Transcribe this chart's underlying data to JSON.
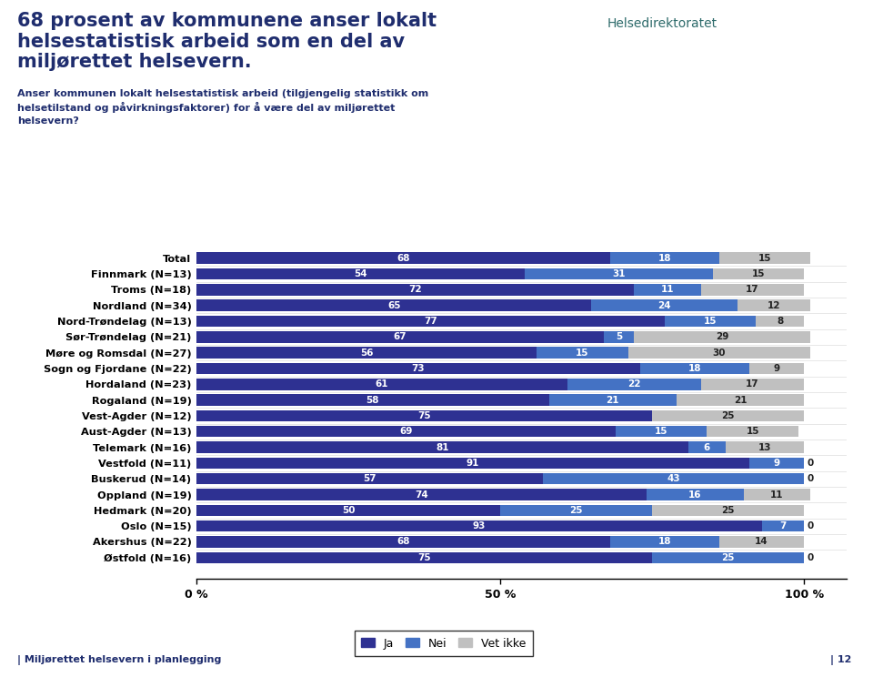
{
  "title_line1": "68 prosent av kommunene anser lokalt",
  "title_line2": "helsestatistisk arbeid som en del av",
  "title_line3": "miljørettet helsevern.",
  "subtitle": "Anser kommunen lokalt helsestatistisk arbeid (tilgjengelig statistikk om\nhelsetilstand og påvirkningsfaktorer) for å være del av miljørettet\nhelsevern?",
  "footer": "| Miljørettet helsevern i planlegging",
  "page_num": "| 12",
  "categories": [
    "Total",
    "Finnmark (N=13)",
    "Troms (N=18)",
    "Nordland (N=34)",
    "Nord-Trøndelag (N=13)",
    "Sør-Trøndelag (N=21)",
    "Møre og Romsdal (N=27)",
    "Sogn og Fjordane (N=22)",
    "Hordaland (N=23)",
    "Rogaland (N=19)",
    "Vest-Agder (N=12)",
    "Aust-Agder (N=13)",
    "Telemark (N=16)",
    "Vestfold (N=11)",
    "Buskerud (N=14)",
    "Oppland (N=19)",
    "Hedmark (N=20)",
    "Oslo (N=15)",
    "Akershus (N=22)",
    "Østfold (N=16)"
  ],
  "ja": [
    68,
    54,
    72,
    65,
    77,
    67,
    56,
    73,
    61,
    58,
    75,
    69,
    81,
    91,
    57,
    74,
    50,
    93,
    68,
    75
  ],
  "nei": [
    18,
    31,
    11,
    24,
    15,
    5,
    15,
    18,
    22,
    21,
    0,
    15,
    6,
    9,
    43,
    16,
    25,
    7,
    18,
    25
  ],
  "vet_ikke": [
    15,
    15,
    17,
    12,
    8,
    29,
    30,
    9,
    17,
    21,
    25,
    15,
    13,
    0,
    0,
    11,
    25,
    0,
    14,
    0
  ],
  "color_ja": "#2E3192",
  "color_nei": "#4472C4",
  "color_vet_ikke": "#C0C0C0",
  "color_title": "#1F2D6E",
  "color_subtitle": "#1F2D6E",
  "color_footer": "#1F2D6E",
  "background": "#FFFFFF",
  "bar_height": 0.72,
  "xlabel_ticks": [
    0,
    50,
    100
  ],
  "xlabel_labels": [
    "0 %",
    "50 %",
    "100 %"
  ],
  "legend_labels": [
    "Ja",
    "Nei",
    "Vet ikke"
  ]
}
